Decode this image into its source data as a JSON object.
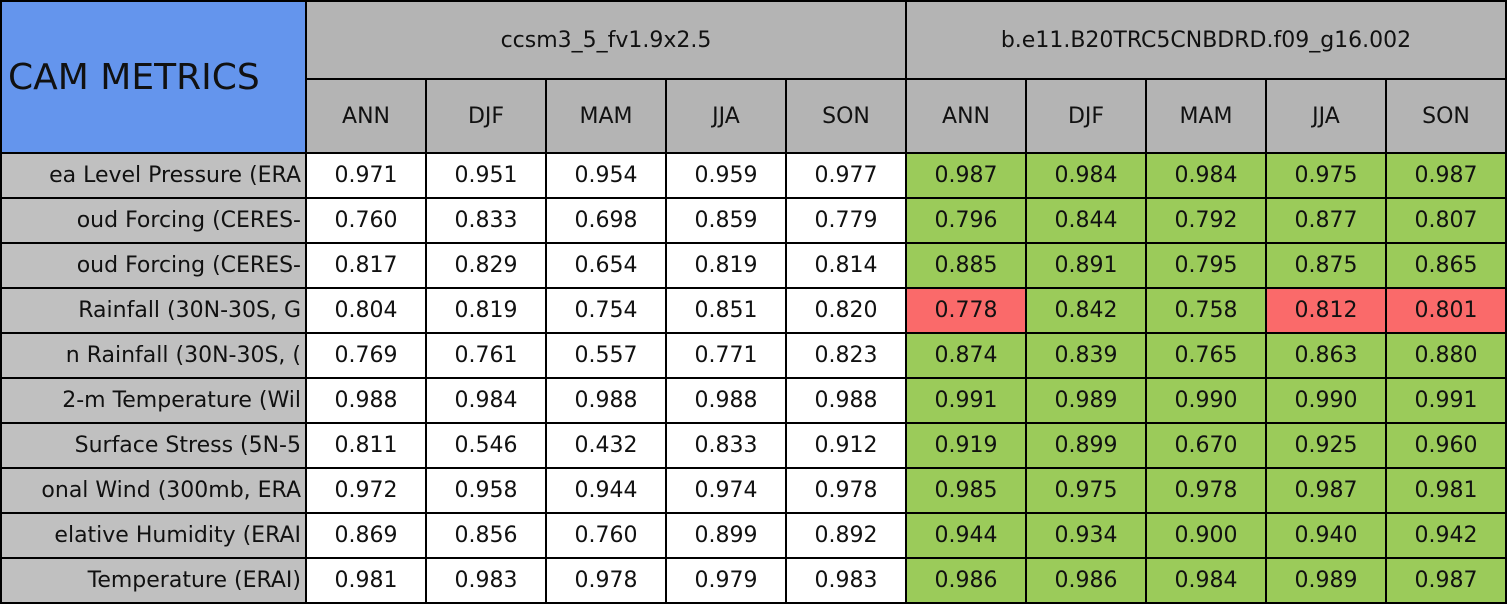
{
  "table": {
    "title": "CAM METRICS",
    "groups": [
      {
        "name": "ccsm3_5_fv1.9x2.5",
        "seasons": [
          "ANN",
          "DJF",
          "MAM",
          "JJA",
          "SON"
        ],
        "color": "#ffffff"
      },
      {
        "name": "b.e11.B20TRC5CNBDRD.f09_g16.002",
        "seasons": [
          "ANN",
          "DJF",
          "MAM",
          "JJA",
          "SON"
        ],
        "color": "#9bcb5a"
      }
    ],
    "rows": [
      {
        "label": "ea Level Pressure (ERA",
        "values": [
          0.971,
          0.951,
          0.954,
          0.959,
          0.977,
          0.987,
          0.984,
          0.984,
          0.975,
          0.987
        ],
        "value_labels": [
          "0.971",
          "0.951",
          "0.954",
          "0.959",
          "0.977",
          "0.987",
          "0.984",
          "0.984",
          "0.975",
          "0.987"
        ]
      },
      {
        "label": "oud Forcing (CERES-",
        "values": [
          0.76,
          0.833,
          0.698,
          0.859,
          0.779,
          0.796,
          0.844,
          0.792,
          0.877,
          0.807
        ],
        "value_labels": [
          "0.760",
          "0.833",
          "0.698",
          "0.859",
          "0.779",
          "0.796",
          "0.844",
          "0.792",
          "0.877",
          "0.807"
        ]
      },
      {
        "label": "oud Forcing (CERES-",
        "values": [
          0.817,
          0.829,
          0.654,
          0.819,
          0.814,
          0.885,
          0.891,
          0.795,
          0.875,
          0.865
        ],
        "value_labels": [
          "0.817",
          "0.829",
          "0.654",
          "0.819",
          "0.814",
          "0.885",
          "0.891",
          "0.795",
          "0.875",
          "0.865"
        ]
      },
      {
        "label": "Rainfall (30N-30S, G",
        "values": [
          0.804,
          0.819,
          0.754,
          0.851,
          0.82,
          0.778,
          0.842,
          0.758,
          0.812,
          0.801
        ],
        "value_labels": [
          "0.804",
          "0.819",
          "0.754",
          "0.851",
          "0.820",
          "0.778",
          "0.842",
          "0.758",
          "0.812",
          "0.801"
        ],
        "highlight": [
          5,
          8,
          9
        ]
      },
      {
        "label": "n Rainfall (30N-30S, (",
        "values": [
          0.769,
          0.761,
          0.557,
          0.771,
          0.823,
          0.874,
          0.839,
          0.765,
          0.863,
          0.88
        ],
        "value_labels": [
          "0.769",
          "0.761",
          "0.557",
          "0.771",
          "0.823",
          "0.874",
          "0.839",
          "0.765",
          "0.863",
          "0.880"
        ]
      },
      {
        "label": "2-m Temperature (Wil",
        "values": [
          0.988,
          0.984,
          0.988,
          0.988,
          0.988,
          0.991,
          0.989,
          0.99,
          0.99,
          0.991
        ],
        "value_labels": [
          "0.988",
          "0.984",
          "0.988",
          "0.988",
          "0.988",
          "0.991",
          "0.989",
          "0.990",
          "0.990",
          "0.991"
        ]
      },
      {
        "label": "Surface Stress (5N-5",
        "values": [
          0.811,
          0.546,
          0.432,
          0.833,
          0.912,
          0.919,
          0.899,
          0.67,
          0.925,
          0.96
        ],
        "value_labels": [
          "0.811",
          "0.546",
          "0.432",
          "0.833",
          "0.912",
          "0.919",
          "0.899",
          "0.670",
          "0.925",
          "0.960"
        ]
      },
      {
        "label": "onal Wind (300mb, ERA",
        "values": [
          0.972,
          0.958,
          0.944,
          0.974,
          0.978,
          0.985,
          0.975,
          0.978,
          0.987,
          0.981
        ],
        "value_labels": [
          "0.972",
          "0.958",
          "0.944",
          "0.974",
          "0.978",
          "0.985",
          "0.975",
          "0.978",
          "0.987",
          "0.981"
        ]
      },
      {
        "label": "elative Humidity (ERAI",
        "values": [
          0.869,
          0.856,
          0.76,
          0.899,
          0.892,
          0.944,
          0.934,
          0.9,
          0.94,
          0.942
        ],
        "value_labels": [
          "0.869",
          "0.856",
          "0.760",
          "0.899",
          "0.892",
          "0.944",
          "0.934",
          "0.900",
          "0.940",
          "0.942"
        ]
      },
      {
        "label": "Temperature (ERAI)",
        "values": [
          0.981,
          0.983,
          0.978,
          0.979,
          0.983,
          0.986,
          0.986,
          0.984,
          0.989,
          0.987
        ],
        "value_labels": [
          "0.981",
          "0.983",
          "0.978",
          "0.979",
          "0.983",
          "0.986",
          "0.986",
          "0.984",
          "0.989",
          "0.987"
        ]
      }
    ],
    "header_color": "#b4b4b4",
    "label_color": "#c0c0c0",
    "highlight_color": "#fa6a6a"
  }
}
